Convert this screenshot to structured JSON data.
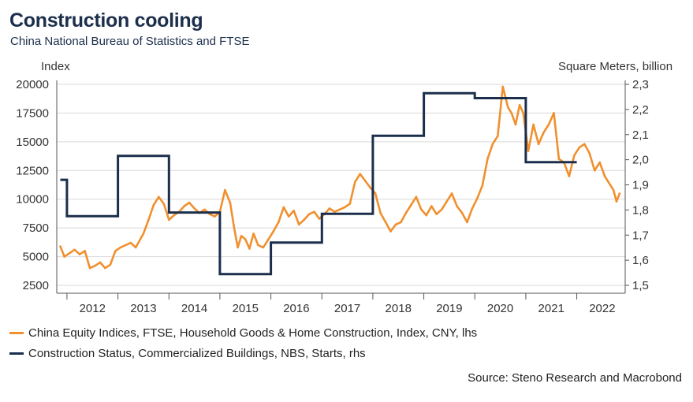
{
  "title": "Construction cooling",
  "subtitle": "China National Bureau of Statistics and FTSE",
  "source": "Source: Steno Research and Macrobond",
  "colors": {
    "equity": "#f0902e",
    "starts": "#1b2e4b",
    "grid": "#d9d9d9",
    "title": "#1b2e4b"
  },
  "chart_data": {
    "type": "line",
    "left_axis_label": "Index",
    "right_axis_label": "Square Meters, billion",
    "left_ylim": [
      2500,
      20000
    ],
    "left_ticks": [
      "20000",
      "17500",
      "15000",
      "12500",
      "10000",
      "7500",
      "5000",
      "2500"
    ],
    "right_ylim": [
      1.5,
      2.3
    ],
    "right_ticks": [
      "2,3",
      "2,2",
      "2,1",
      "2,0",
      "1,9",
      "1,8",
      "1,7",
      "1,6",
      "1,5"
    ],
    "x_ticks": [
      "2012",
      "2013",
      "2014",
      "2015",
      "2016",
      "2017",
      "2018",
      "2019",
      "2020",
      "2021",
      "2022"
    ],
    "xlim": [
      2011.8,
      2022.95
    ],
    "grid": true,
    "legend_placement": "bottom",
    "series": [
      {
        "name": "China Equity Indices, FTSE, Household Goods & Home Construction, Index, CNY, lhs",
        "axis": "left",
        "style": "line",
        "x": [
          2011.87,
          2011.95,
          2012.05,
          2012.15,
          2012.25,
          2012.35,
          2012.45,
          2012.55,
          2012.65,
          2012.75,
          2012.85,
          2012.95,
          2013.05,
          2013.15,
          2013.25,
          2013.35,
          2013.5,
          2013.6,
          2013.7,
          2013.8,
          2013.9,
          2014.0,
          2014.1,
          2014.2,
          2014.3,
          2014.4,
          2014.5,
          2014.6,
          2014.7,
          2014.8,
          2014.9,
          2015.0,
          2015.1,
          2015.2,
          2015.28,
          2015.35,
          2015.42,
          2015.5,
          2015.58,
          2015.66,
          2015.75,
          2015.85,
          2015.95,
          2016.05,
          2016.15,
          2016.25,
          2016.35,
          2016.45,
          2016.55,
          2016.65,
          2016.75,
          2016.85,
          2016.95,
          2017.05,
          2017.15,
          2017.25,
          2017.35,
          2017.45,
          2017.55,
          2017.65,
          2017.75,
          2017.85,
          2017.95,
          2018.05,
          2018.15,
          2018.25,
          2018.35,
          2018.45,
          2018.55,
          2018.65,
          2018.75,
          2018.85,
          2018.95,
          2019.05,
          2019.15,
          2019.25,
          2019.35,
          2019.45,
          2019.55,
          2019.65,
          2019.75,
          2019.85,
          2019.95,
          2020.05,
          2020.15,
          2020.25,
          2020.35,
          2020.45,
          2020.55,
          2020.65,
          2020.72,
          2020.8,
          2020.88,
          2020.95,
          2021.05,
          2021.15,
          2021.25,
          2021.35,
          2021.45,
          2021.55,
          2021.65,
          2021.75,
          2021.85,
          2021.95,
          2022.05,
          2022.15,
          2022.25,
          2022.35,
          2022.45,
          2022.55,
          2022.62,
          2022.72,
          2022.78,
          2022.84
        ],
        "values": [
          5900,
          5000,
          5300,
          5600,
          5200,
          5500,
          4000,
          4200,
          4500,
          4000,
          4300,
          5500,
          5800,
          6000,
          6200,
          5800,
          7000,
          8200,
          9500,
          10200,
          9600,
          8200,
          8600,
          8900,
          9400,
          9700,
          9200,
          8800,
          9100,
          8700,
          8500,
          8900,
          10800,
          9700,
          7500,
          5800,
          6800,
          6500,
          5700,
          7000,
          6000,
          5800,
          6500,
          7200,
          8000,
          9300,
          8500,
          9000,
          7800,
          8200,
          8700,
          8900,
          8300,
          8700,
          9200,
          8900,
          9100,
          9300,
          9600,
          11500,
          12200,
          11600,
          11000,
          10500,
          8800,
          8000,
          7200,
          7800,
          8000,
          8800,
          9500,
          10200,
          9100,
          8600,
          9400,
          8700,
          9100,
          9800,
          10500,
          9400,
          8800,
          8000,
          9200,
          10100,
          11200,
          13500,
          14800,
          15500,
          19800,
          18000,
          17500,
          16500,
          18200,
          17500,
          14200,
          16500,
          14800,
          15800,
          16500,
          17500,
          13500,
          13200,
          12000,
          13800,
          14500,
          14800,
          14000,
          12500,
          13200,
          12000,
          11500,
          10800,
          9800,
          10500
        ]
      },
      {
        "name": "Construction Status, Commercialized Buildings, NBS, Starts, rhs",
        "axis": "right",
        "style": "step",
        "steps": [
          [
            2011.87,
            2012.0,
            1.92
          ],
          [
            2012.0,
            2013.0,
            1.775
          ],
          [
            2013.0,
            2014.0,
            2.015
          ],
          [
            2014.0,
            2015.0,
            1.79
          ],
          [
            2015.0,
            2016.0,
            1.545
          ],
          [
            2016.0,
            2017.0,
            1.67
          ],
          [
            2017.0,
            2018.0,
            1.785
          ],
          [
            2018.0,
            2019.0,
            2.095
          ],
          [
            2019.0,
            2020.0,
            2.265
          ],
          [
            2020.0,
            2021.0,
            2.245
          ],
          [
            2021.0,
            2022.0,
            1.99
          ]
        ]
      }
    ]
  }
}
